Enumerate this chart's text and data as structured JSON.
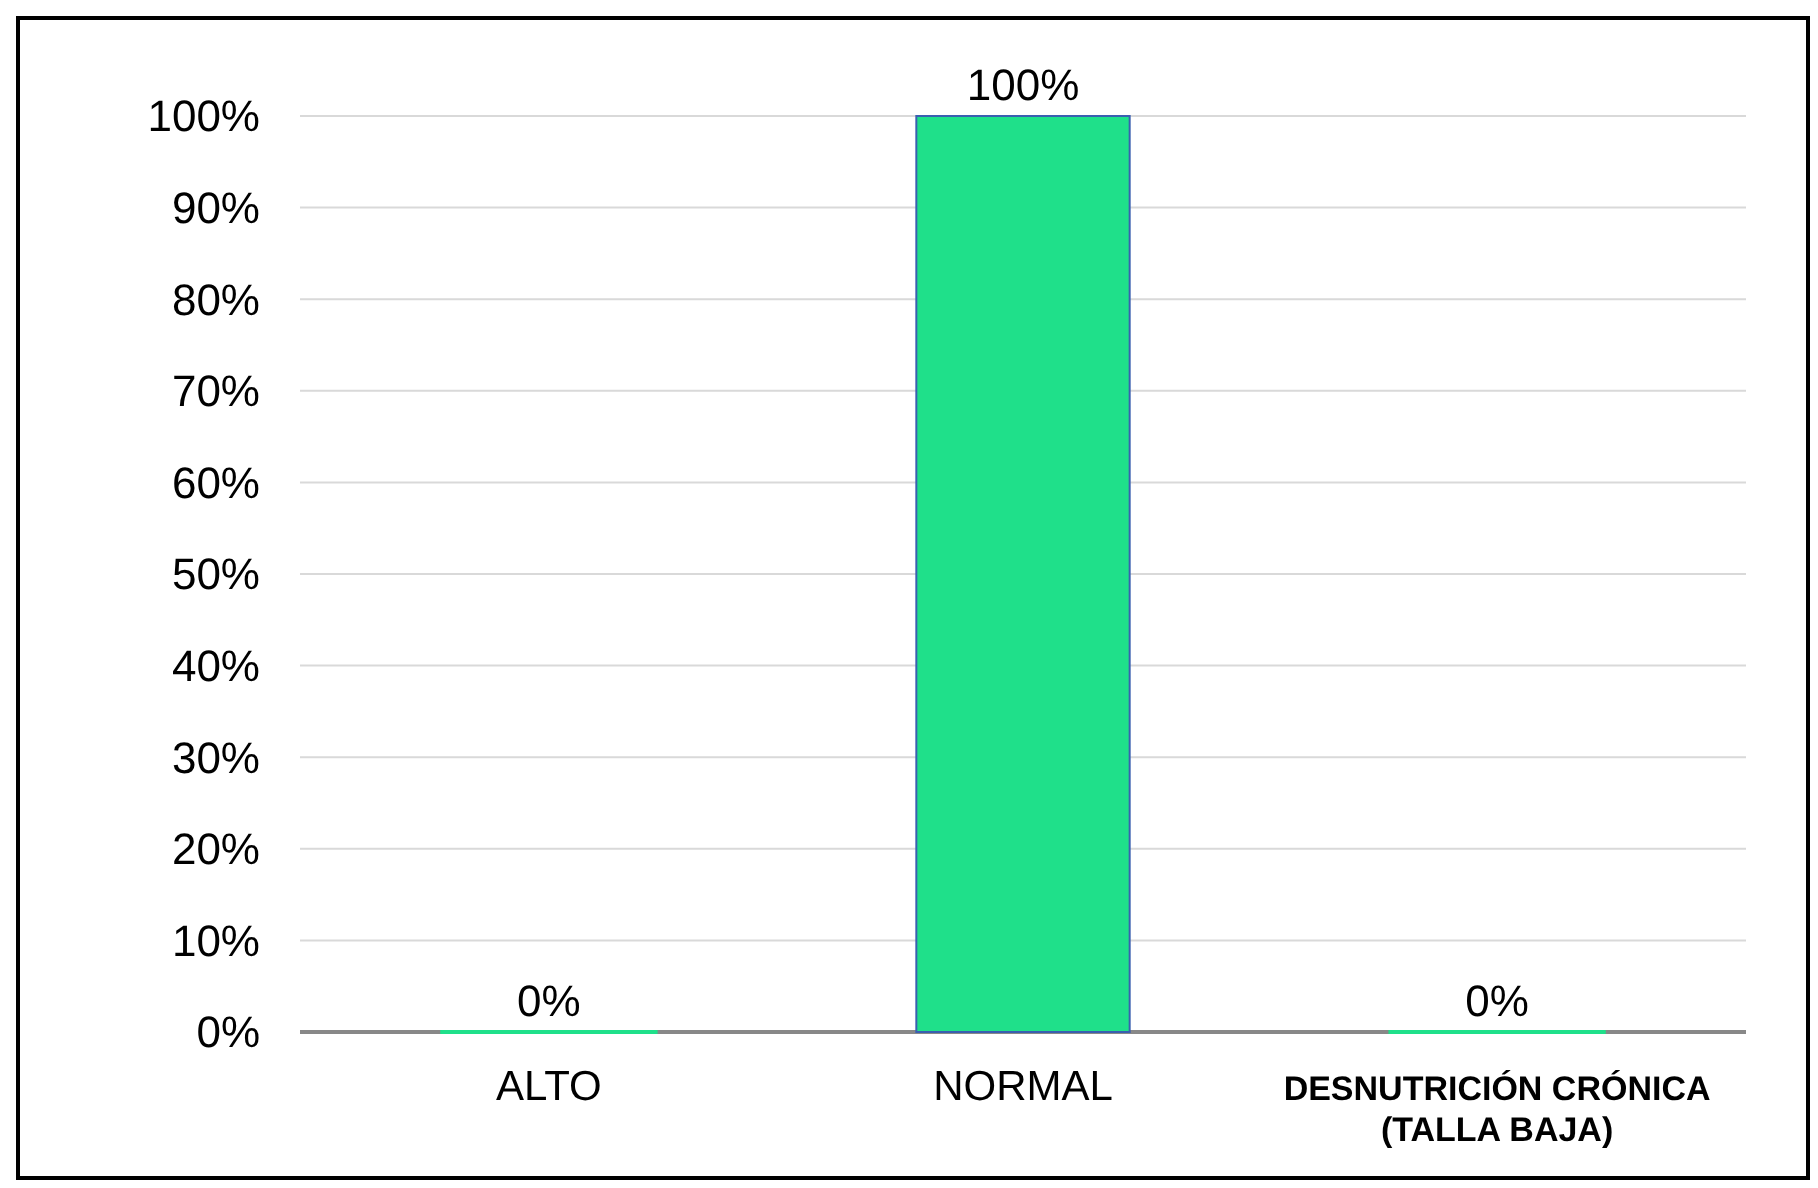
{
  "chart_data": {
    "type": "bar",
    "categories": [
      "ALTO",
      "NORMAL",
      "DESNUTRICIÓN CRÓNICA (TALLA BAJA)"
    ],
    "values": [
      0,
      100,
      0
    ],
    "color": "#1fe08a",
    "value_labels": [
      "0%",
      "100%",
      "0%"
    ],
    "ylim": [
      0,
      100
    ],
    "yticks": [
      {
        "value": 0,
        "label": "0%"
      },
      {
        "value": 10,
        "label": "10%"
      },
      {
        "value": 20,
        "label": "20%"
      },
      {
        "value": 30,
        "label": "30%"
      },
      {
        "value": 40,
        "label": "40%"
      },
      {
        "value": 50,
        "label": "50%"
      },
      {
        "value": 60,
        "label": "60%"
      },
      {
        "value": 70,
        "label": "70%"
      },
      {
        "value": 80,
        "label": "80%"
      },
      {
        "value": 90,
        "label": "90%"
      },
      {
        "value": 100,
        "label": "100%"
      }
    ],
    "grid": "y"
  }
}
